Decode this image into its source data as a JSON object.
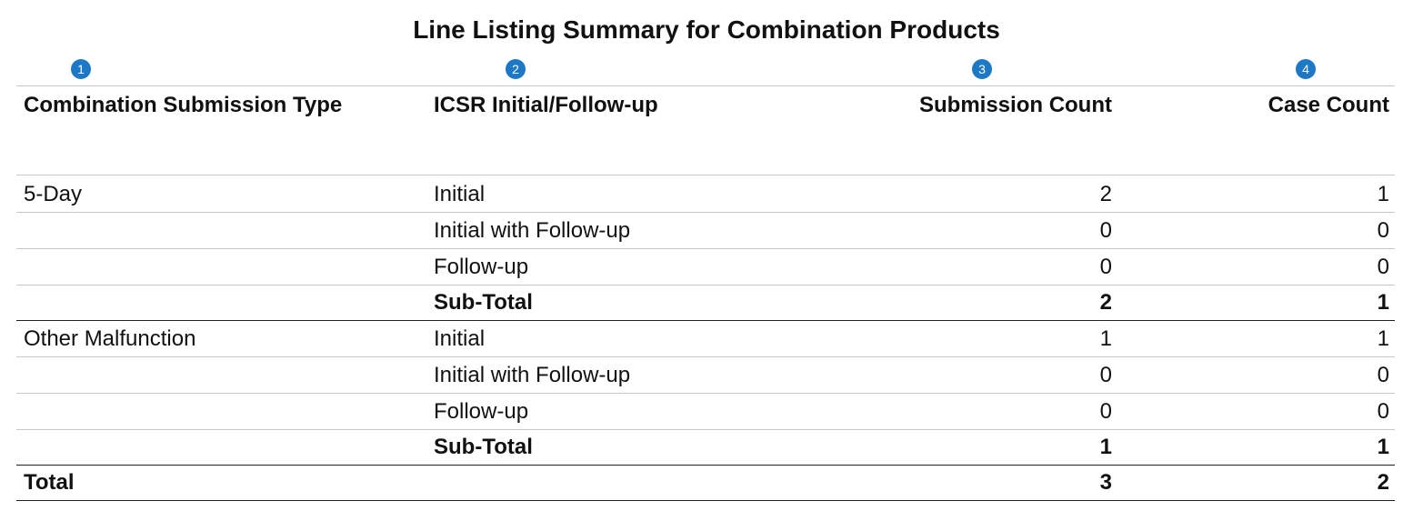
{
  "title": "Line Listing Summary for Combination Products",
  "markers": [
    "1",
    "2",
    "3",
    "4"
  ],
  "accent_color": "#1d78c6",
  "columns": [
    "Combination Submission Type",
    "ICSR Initial/Follow-up",
    "Submission Count",
    "Case Count"
  ],
  "rows": [
    {
      "type": "5-Day",
      "icsr": "Initial",
      "submission_count": "2",
      "case_count": "1"
    },
    {
      "type": "",
      "icsr": "Initial with Follow-up",
      "submission_count": "0",
      "case_count": "0"
    },
    {
      "type": "",
      "icsr": "Follow-up",
      "submission_count": "0",
      "case_count": "0"
    },
    {
      "type": "",
      "icsr": "Sub-Total",
      "submission_count": "2",
      "case_count": "1"
    },
    {
      "type": "Other Malfunction",
      "icsr": "Initial",
      "submission_count": "1",
      "case_count": "1"
    },
    {
      "type": "",
      "icsr": "Initial with Follow-up",
      "submission_count": "0",
      "case_count": "0"
    },
    {
      "type": "",
      "icsr": "Follow-up",
      "submission_count": "0",
      "case_count": "0"
    },
    {
      "type": "",
      "icsr": "Sub-Total",
      "submission_count": "1",
      "case_count": "1"
    }
  ],
  "total": {
    "label": "Total",
    "submission_count": "3",
    "case_count": "2"
  }
}
